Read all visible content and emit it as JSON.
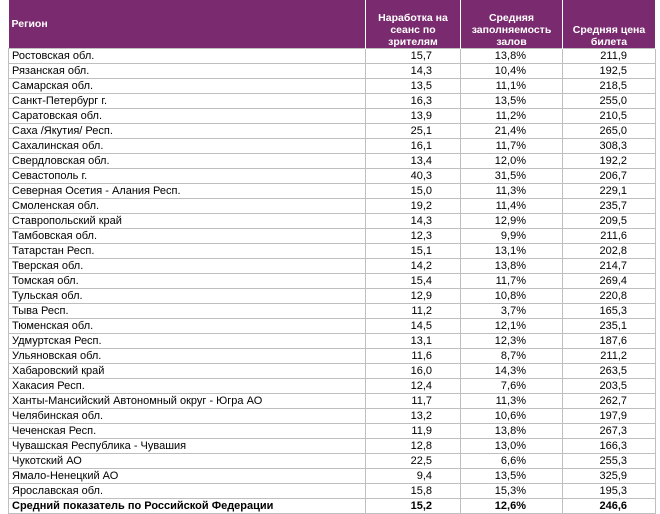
{
  "table": {
    "header": [
      "Регион",
      "Наработка на сеанс по зрителям",
      "Средняя заполняемость залов",
      "Средняя цена билета"
    ],
    "rows": [
      [
        "Ростовская обл.",
        "15,7",
        "13,8%",
        "211,9"
      ],
      [
        "Рязанская обл.",
        "14,3",
        "10,4%",
        "192,5"
      ],
      [
        "Самарская обл.",
        "13,5",
        "11,1%",
        "218,5"
      ],
      [
        "Санкт-Петербург г.",
        "16,3",
        "13,5%",
        "255,0"
      ],
      [
        "Саратовская обл.",
        "13,9",
        "11,2%",
        "210,5"
      ],
      [
        "Саха /Якутия/ Респ.",
        "25,1",
        "21,4%",
        "265,0"
      ],
      [
        "Сахалинская обл.",
        "16,1",
        "11,7%",
        "308,3"
      ],
      [
        "Свердловская обл.",
        "13,4",
        "12,0%",
        "192,2"
      ],
      [
        "Севастополь г.",
        "40,3",
        "31,5%",
        "206,7"
      ],
      [
        "Северная Осетия - Алания Респ.",
        "15,0",
        "11,3%",
        "229,1"
      ],
      [
        "Смоленская обл.",
        "19,2",
        "11,4%",
        "235,7"
      ],
      [
        "Ставропольский край",
        "14,3",
        "12,9%",
        "209,5"
      ],
      [
        "Тамбовская обл.",
        "12,3",
        "9,9%",
        "211,6"
      ],
      [
        "Татарстан Респ.",
        "15,1",
        "13,1%",
        "202,8"
      ],
      [
        "Тверская обл.",
        "14,2",
        "13,8%",
        "214,7"
      ],
      [
        "Томская обл.",
        "15,4",
        "11,7%",
        "269,4"
      ],
      [
        "Тульская обл.",
        "12,9",
        "10,8%",
        "220,8"
      ],
      [
        "Тыва Респ.",
        "11,2",
        "3,7%",
        "165,3"
      ],
      [
        "Тюменская обл.",
        "14,5",
        "12,1%",
        "235,1"
      ],
      [
        "Удмуртская Респ.",
        "13,1",
        "12,3%",
        "187,6"
      ],
      [
        "Ульяновская обл.",
        "11,6",
        "8,7%",
        "211,2"
      ],
      [
        "Хабаровский край",
        "16,0",
        "14,3%",
        "263,5"
      ],
      [
        "Хакасия Респ.",
        "12,4",
        "7,6%",
        "203,5"
      ],
      [
        "Ханты-Мансийский Автономный округ - Югра АО",
        "11,7",
        "11,3%",
        "262,7"
      ],
      [
        "Челябинская обл.",
        "13,2",
        "10,6%",
        "197,9"
      ],
      [
        "Чеченская Респ.",
        "11,9",
        "13,8%",
        "267,3"
      ],
      [
        "Чувашская Республика - Чувашия",
        "12,8",
        "13,0%",
        "166,3"
      ],
      [
        "Чукотский АО",
        "22,5",
        "6,6%",
        "255,3"
      ],
      [
        "Ямало-Ненецкий АО",
        "9,4",
        "13,5%",
        "325,9"
      ],
      [
        "Ярославская обл.",
        "15,8",
        "15,3%",
        "195,3"
      ]
    ],
    "total": [
      "Средний показатель по Российской Федерации",
      "15,2",
      "12,6%",
      "246,6"
    ]
  }
}
